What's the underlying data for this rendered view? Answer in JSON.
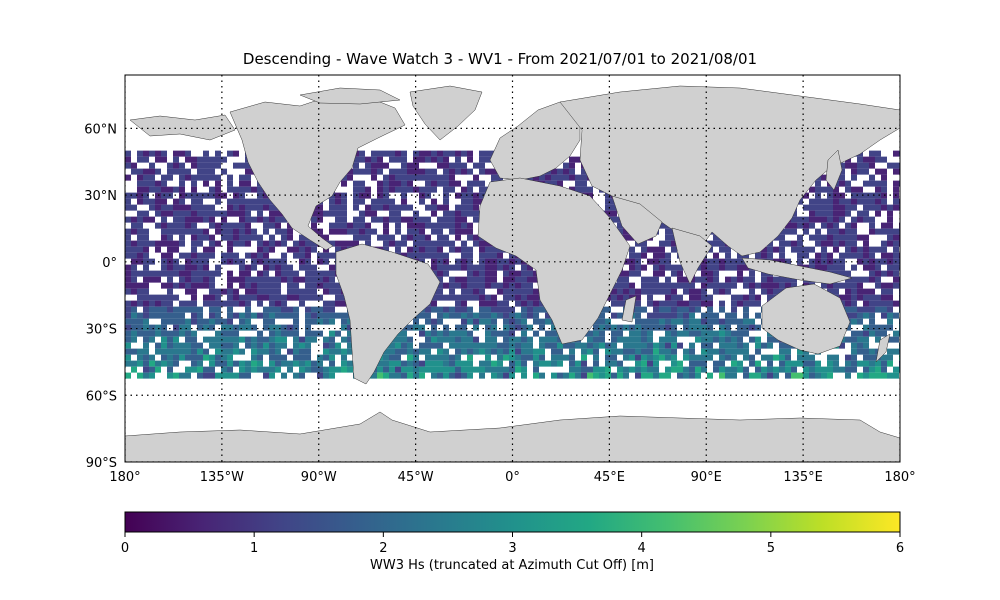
{
  "title": "Descending - Wave Watch 3 - WV1 - From 2021/07/01 to 2021/08/01",
  "map": {
    "lon_range": [
      -180,
      180
    ],
    "lat_range": [
      -90,
      90
    ],
    "grid_style": "dotted",
    "land_color": "#d0d0d0",
    "data_lat_range": [
      -50,
      50
    ],
    "lat_ticks": [
      {
        "value": 60,
        "label": "60°N"
      },
      {
        "value": 30,
        "label": "30°N"
      },
      {
        "value": 0,
        "label": "0°"
      },
      {
        "value": -30,
        "label": "30°S"
      },
      {
        "value": -60,
        "label": "60°S"
      },
      {
        "value": -90,
        "label": "90°S"
      }
    ],
    "lon_ticks": [
      {
        "value": -180,
        "label": "180°"
      },
      {
        "value": -135,
        "label": "135°W"
      },
      {
        "value": -90,
        "label": "90°W"
      },
      {
        "value": -45,
        "label": "45°W"
      },
      {
        "value": 0,
        "label": "0°"
      },
      {
        "value": 45,
        "label": "45°E"
      },
      {
        "value": 90,
        "label": "90°E"
      },
      {
        "value": 135,
        "label": "135°E"
      },
      {
        "value": 180,
        "label": "180°"
      }
    ]
  },
  "colorbar": {
    "colormap": "viridis",
    "min": 0,
    "max": 6,
    "ticks": [
      "0",
      "1",
      "2",
      "3",
      "4",
      "5",
      "6"
    ],
    "label": "WW3 Hs (truncated at Azimuth Cut Off) [m]"
  }
}
